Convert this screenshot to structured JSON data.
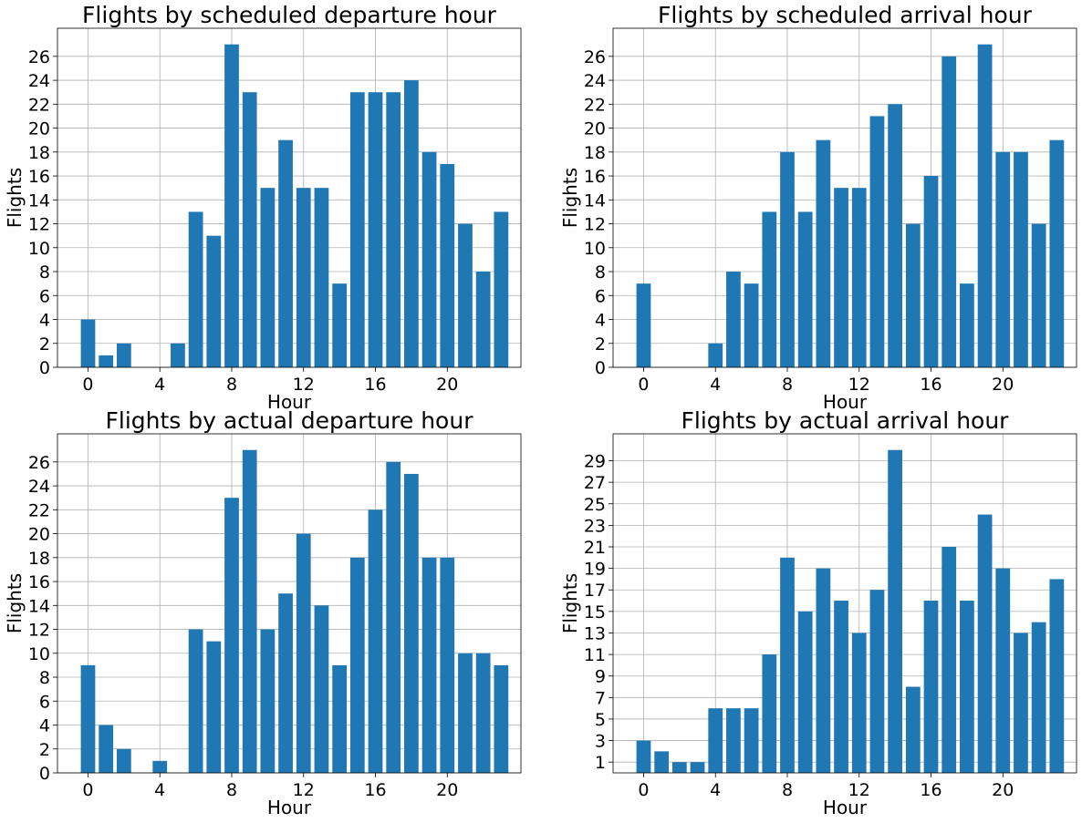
{
  "chart_data": [
    {
      "type": "bar",
      "title": "Flights by scheduled departure hour",
      "xlabel": "Hour",
      "ylabel": "Flights",
      "x": [
        0,
        1,
        2,
        3,
        4,
        5,
        6,
        7,
        8,
        9,
        10,
        11,
        12,
        13,
        14,
        15,
        16,
        17,
        18,
        19,
        20,
        21,
        22,
        23
      ],
      "values": [
        4,
        1,
        2,
        0,
        0,
        2,
        13,
        11,
        27,
        23,
        15,
        19,
        15,
        15,
        7,
        23,
        23,
        23,
        24,
        18,
        17,
        12,
        8,
        13
      ],
      "xticks": [
        "0",
        "4",
        "8",
        "12",
        "16",
        "20"
      ],
      "yticks": [
        "0",
        "2",
        "4",
        "6",
        "8",
        "10",
        "12",
        "14",
        "16",
        "18",
        "20",
        "22",
        "24",
        "26"
      ],
      "xlim": [
        -1.7,
        24.1
      ],
      "ylim": [
        0,
        28.35
      ],
      "grid": true,
      "bar_color": "#1f77b4"
    },
    {
      "type": "bar",
      "title": "Flights by scheduled arrival hour",
      "xlabel": "Hour",
      "ylabel": "Flights",
      "x": [
        0,
        1,
        2,
        3,
        4,
        5,
        6,
        7,
        8,
        9,
        10,
        11,
        12,
        13,
        14,
        15,
        16,
        17,
        18,
        19,
        20,
        21,
        22,
        23
      ],
      "values": [
        7,
        0,
        0,
        0,
        2,
        8,
        7,
        13,
        18,
        13,
        19,
        15,
        15,
        21,
        22,
        12,
        16,
        26,
        7,
        27,
        18,
        18,
        12,
        19
      ],
      "xticks": [
        "0",
        "4",
        "8",
        "12",
        "16",
        "20"
      ],
      "yticks": [
        "0",
        "2",
        "4",
        "6",
        "8",
        "10",
        "12",
        "14",
        "16",
        "18",
        "20",
        "22",
        "24",
        "26"
      ],
      "xlim": [
        -1.7,
        24.1
      ],
      "ylim": [
        0,
        28.35
      ],
      "grid": true,
      "bar_color": "#1f77b4"
    },
    {
      "type": "bar",
      "title": "Flights by actual departure hour",
      "xlabel": "Hour",
      "ylabel": "Flights",
      "x": [
        0,
        1,
        2,
        3,
        4,
        5,
        6,
        7,
        8,
        9,
        10,
        11,
        12,
        13,
        14,
        15,
        16,
        17,
        18,
        19,
        20,
        21,
        22,
        23
      ],
      "values": [
        9,
        4,
        2,
        0,
        1,
        0,
        12,
        11,
        23,
        27,
        12,
        15,
        20,
        14,
        9,
        18,
        22,
        26,
        25,
        18,
        18,
        10,
        10,
        9
      ],
      "xticks": [
        "0",
        "4",
        "8",
        "12",
        "16",
        "20"
      ],
      "yticks": [
        "0",
        "2",
        "4",
        "6",
        "8",
        "10",
        "12",
        "14",
        "16",
        "18",
        "20",
        "22",
        "24",
        "26"
      ],
      "xlim": [
        -1.7,
        24.1
      ],
      "ylim": [
        0,
        28.35
      ],
      "grid": true,
      "bar_color": "#1f77b4"
    },
    {
      "type": "bar",
      "title": "Flights by actual arrival hour",
      "xlabel": "Hour",
      "ylabel": "Flights",
      "x": [
        0,
        1,
        2,
        3,
        4,
        5,
        6,
        7,
        8,
        9,
        10,
        11,
        12,
        13,
        14,
        15,
        16,
        17,
        18,
        19,
        20,
        21,
        22,
        23
      ],
      "values": [
        3,
        2,
        1,
        1,
        6,
        6,
        6,
        11,
        20,
        15,
        19,
        16,
        13,
        17,
        30,
        8,
        16,
        21,
        16,
        24,
        19,
        13,
        14,
        18
      ],
      "xticks": [
        "0",
        "4",
        "8",
        "12",
        "16",
        "20"
      ],
      "yticks": [
        "1",
        "3",
        "5",
        "7",
        "9",
        "11",
        "13",
        "15",
        "17",
        "19",
        "21",
        "23",
        "25",
        "27",
        "29"
      ],
      "xlim": [
        -1.7,
        24.1
      ],
      "ylim": [
        0,
        31.5
      ],
      "grid": true,
      "bar_color": "#1f77b4"
    }
  ]
}
